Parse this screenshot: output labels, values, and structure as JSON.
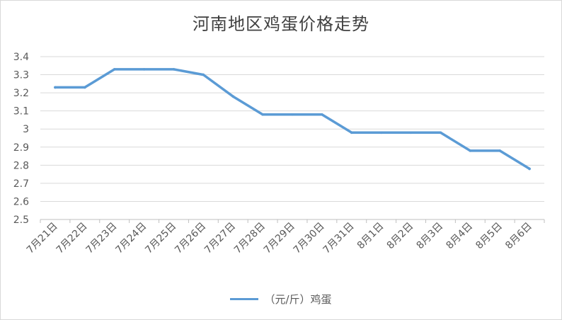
{
  "chart_data": {
    "type": "line",
    "title": "河南地区鸡蛋价格走势",
    "categories": [
      "7月21日",
      "7月22日",
      "7月23日",
      "7月24日",
      "7月25日",
      "7月26日",
      "7月27日",
      "7月28日",
      "7月29日",
      "7月30日",
      "7月31日",
      "8月1日",
      "8月2日",
      "8月3日",
      "8月4日",
      "8月5日",
      "8月6日"
    ],
    "series": [
      {
        "name": "（元/斤）鸡蛋",
        "values": [
          3.23,
          3.23,
          3.33,
          3.33,
          3.33,
          3.3,
          3.18,
          3.08,
          3.08,
          3.08,
          2.98,
          2.98,
          2.98,
          2.98,
          2.88,
          2.88,
          2.78
        ]
      }
    ],
    "ylim": [
      2.5,
      3.4
    ],
    "yticks": [
      "3.4",
      "3.3",
      "3.2",
      "3.1",
      "3",
      "2.9",
      "2.8",
      "2.7",
      "2.6",
      "2.5"
    ],
    "grid": true,
    "legend_position": "bottom",
    "line_color": "#5b9bd5"
  }
}
